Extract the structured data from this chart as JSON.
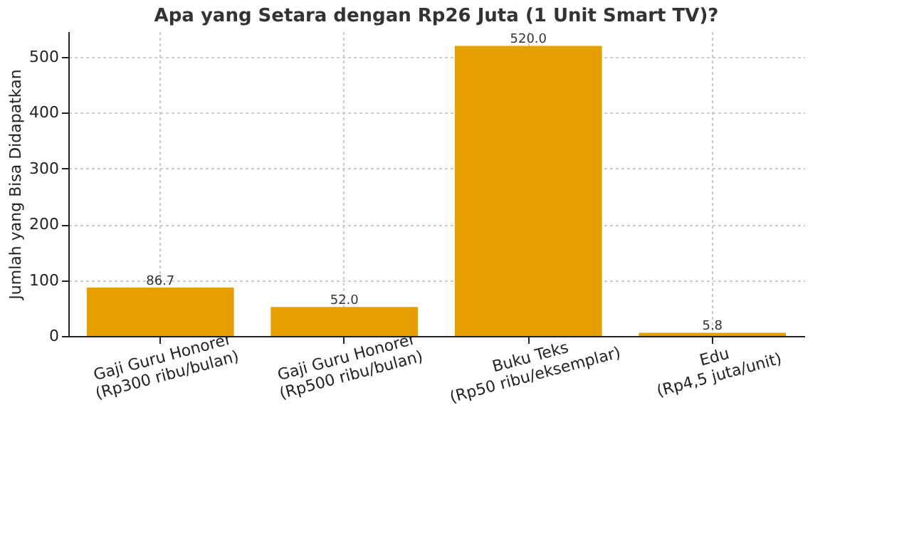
{
  "chart_data": {
    "type": "bar",
    "title": "Apa yang Setara dengan Rp26 Juta (1 Unit Smart TV)?",
    "ylabel": "Jumlah yang Bisa Didapatkan",
    "categories": [
      "Gaji Guru Honorer\n(Rp300 ribu/bulan)",
      "Gaji Guru Honorer\n(Rp500 ribu/bulan)",
      "Buku Teks\n(Rp50 ribu/eksemplar)",
      "Edu\n(Rp4,5 juta/unit)"
    ],
    "values": [
      86.7,
      52.0,
      520.0,
      5.8
    ],
    "value_labels": [
      "86.7",
      "52.0",
      "520.0",
      "5.8"
    ],
    "color": "#e5a000",
    "ylim": [
      0,
      546
    ],
    "yticks": [
      0,
      100,
      200,
      300,
      400,
      500
    ],
    "grid": true
  }
}
